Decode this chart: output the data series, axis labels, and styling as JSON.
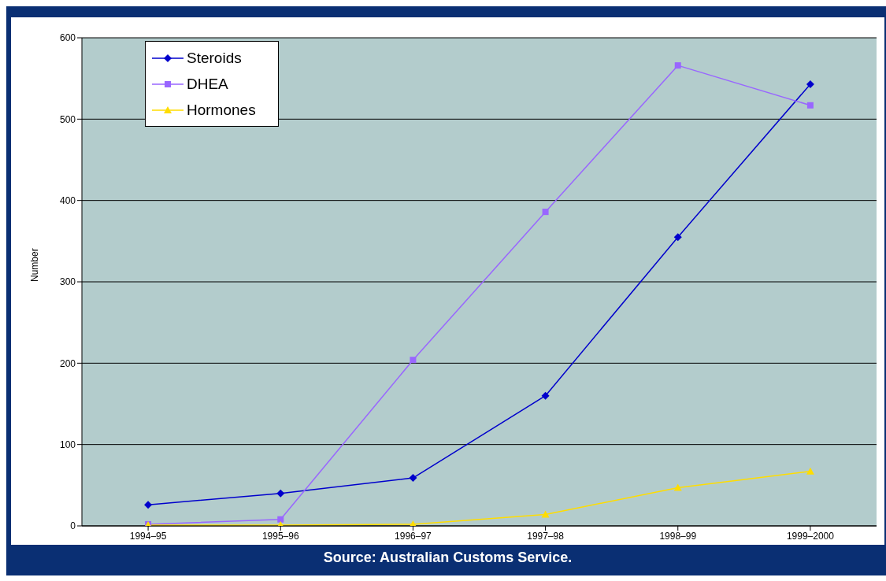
{
  "chart_data": {
    "type": "line",
    "ylabel": "Number",
    "categories": [
      "1994–95",
      "1995–96",
      "1996–97",
      "1997–98",
      "1998–99",
      "1999–2000"
    ],
    "series": [
      {
        "name": "Steroids",
        "color": "#0000cc",
        "marker": "diamond",
        "values": [
          26,
          40,
          59,
          160,
          355,
          543
        ]
      },
      {
        "name": "DHEA",
        "color": "#9966ff",
        "marker": "square",
        "values": [
          2,
          8,
          204,
          386,
          566,
          517
        ]
      },
      {
        "name": "Hormones",
        "color": "#ffdd00",
        "marker": "triangle",
        "values": [
          1,
          1,
          2,
          14,
          47,
          67
        ]
      }
    ],
    "ylim": [
      0,
      600
    ],
    "yticks": [
      0,
      100,
      200,
      300,
      400,
      500,
      600
    ],
    "grid": "y",
    "legend": "top left",
    "annotations": [
      "Source: Australian Customs Service."
    ]
  }
}
